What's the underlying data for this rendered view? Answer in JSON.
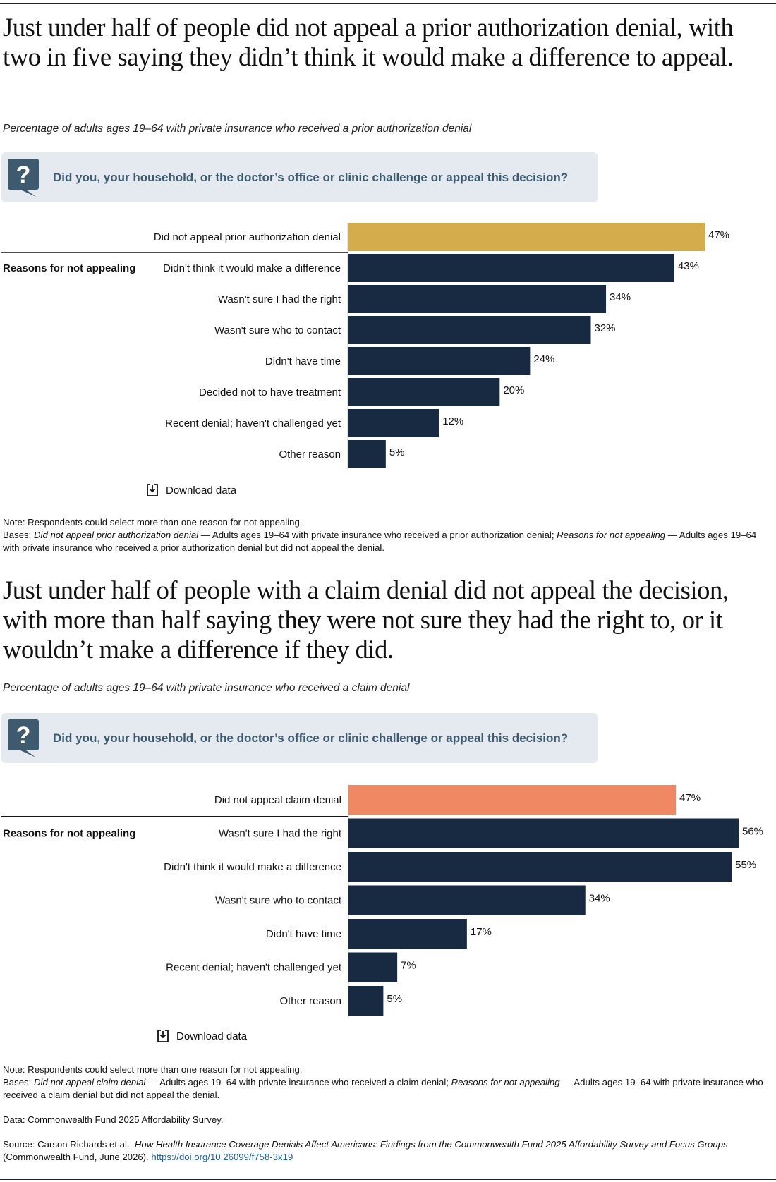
{
  "section1": {
    "headline": "Just under half of people did not appeal a prior authorization denial, with two in five saying they didn’t think it would make a difference to appeal.",
    "subtitle": "Percentage of adults ages 19–64 with private insurance who received a prior authorization denial",
    "question": "Did you, your household, or the doctor’s office or clinic challenge or appeal this decision?",
    "section_label": "Reasons for not appealing",
    "download_label": "Download data",
    "note": "Note: Respondents could select more than one reason for not appealing.",
    "bases": {
      "prefix": "Bases:",
      "term1": "Did not appeal prior authorization denial",
      "text1": " — Adults ages 19–64 with private insurance who received a prior authorization denial; ",
      "term2": "Reasons for not appealing",
      "text2": " — Adults ages 19–64 with private insurance who received a prior authorization denial but did not appeal the denial."
    }
  },
  "section2": {
    "headline": "Just under half of people with a claim denial did not appeal the decision, with more than half saying they were not sure they had the right to, or it wouldn’t make a difference if they did.",
    "subtitle": "Percentage of adults ages 19–64 with private insurance who received a claim denial",
    "question": "Did you, your household, or the doctor’s office or clinic challenge or appeal this decision?",
    "section_label": "Reasons for not appealing",
    "download_label": "Download data",
    "note": "Note: Respondents could select more than one reason for not appealing.",
    "bases": {
      "prefix": "Bases:",
      "term1": "Did not appeal claim denial",
      "text1": " — Adults ages 19–64 with private insurance who received a claim denial; ",
      "term2": "Reasons for not appealing",
      "text2": " — Adults ages 19–64 with private insurance who received a claim denial but did not appeal the denial."
    }
  },
  "footer": {
    "data_line": "Data: Commonwealth Fund 2025 Affordability Survey.",
    "source_prefix": "Source: Carson Richards et al., ",
    "source_title": "How Health Insurance Coverage Denials Affect Americans: Findings from the Commonwealth Fund 2025 Affordability Survey and Focus Groups",
    "source_suffix": " (Commonwealth Fund, June 2026). ",
    "source_link": "https://doi.org/10.26099/f758-3x19"
  },
  "colors": {
    "navy": "#172a42",
    "gold": "#d4ac4b",
    "salmon": "#f08963",
    "question_bg": "#e4eaf0",
    "question_text": "#3d5a6e"
  },
  "chart_data": [
    {
      "type": "bar",
      "orientation": "horizontal",
      "categories": [
        "Did not appeal prior authorization denial",
        "Didn't think it would make a difference",
        "Wasn't sure I had the right",
        "Wasn't sure who to contact",
        "Didn't have time",
        "Decided not to have treatment",
        "Recent denial; haven't challenged yet",
        "Other reason"
      ],
      "values": [
        47,
        43,
        34,
        32,
        24,
        20,
        12,
        5
      ],
      "labels": [
        "47%",
        "43%",
        "34%",
        "32%",
        "24%",
        "20%",
        "12%",
        "5%"
      ],
      "highlight_color": "#d4ac4b",
      "bar_color": "#172a42",
      "xlim": [
        0,
        47
      ],
      "grid": false
    },
    {
      "type": "bar",
      "orientation": "horizontal",
      "categories": [
        "Did not appeal claim denial",
        "Wasn't sure I had the right",
        "Didn't think it would make a difference",
        "Wasn't sure who to contact",
        "Didn't have time",
        "Recent denial; haven't challenged yet",
        "Other reason"
      ],
      "values": [
        47,
        56,
        55,
        34,
        17,
        7,
        5
      ],
      "labels": [
        "47%",
        "56%",
        "55%",
        "34%",
        "17%",
        "7%",
        "5%"
      ],
      "highlight_color": "#f08963",
      "bar_color": "#172a42",
      "xlim": [
        0,
        56
      ],
      "grid": false
    }
  ]
}
